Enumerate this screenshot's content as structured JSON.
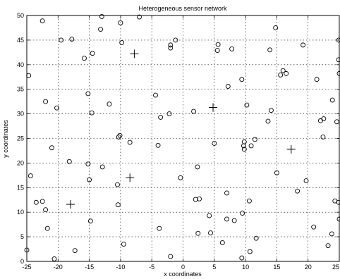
{
  "chart_data": {
    "type": "scatter",
    "title": "Heterogeneous sensor network",
    "xlabel": "x coordinates",
    "ylabel": "y coordinates",
    "xlim": [
      -25,
      25
    ],
    "ylim": [
      0,
      50
    ],
    "xticks": [
      -25,
      -20,
      -15,
      -10,
      -5,
      0,
      5,
      10,
      15,
      20,
      25
    ],
    "yticks": [
      0,
      5,
      10,
      15,
      20,
      25,
      30,
      35,
      40,
      45,
      50
    ],
    "xtick_labels": [
      "-25",
      "-20",
      "-15",
      "-10",
      "-5",
      "0",
      "5",
      "10",
      "15",
      "20",
      "25"
    ],
    "ytick_labels": [
      "0",
      "5",
      "10",
      "15",
      "20",
      "25",
      "30",
      "35",
      "40",
      "45",
      "50"
    ],
    "grid": true,
    "series": [
      {
        "marker": "circle",
        "points": [
          [
            -22.5,
            48.9
          ],
          [
            -19.5,
            45.0
          ],
          [
            -17.8,
            45.2
          ],
          [
            -13.0,
            49.8
          ],
          [
            -13.2,
            47.2
          ],
          [
            -10.0,
            48.5
          ],
          [
            -7.0,
            49.7
          ],
          [
            -9.8,
            44.5
          ],
          [
            -14.5,
            42.3
          ],
          [
            -15.8,
            41.3
          ],
          [
            -24.7,
            37.8
          ],
          [
            -22.0,
            32.5
          ],
          [
            -20.2,
            31.2
          ],
          [
            -15.2,
            34.1
          ],
          [
            -11.8,
            32.0
          ],
          [
            -14.6,
            30.2
          ],
          [
            -21.0,
            23.1
          ],
          [
            -18.2,
            20.3
          ],
          [
            -15.2,
            19.8
          ],
          [
            -12.9,
            19.2
          ],
          [
            -10.3,
            25.3
          ],
          [
            -10.1,
            25.6
          ],
          [
            -8.5,
            24.2
          ],
          [
            -24.4,
            17.4
          ],
          [
            -15.0,
            16.6
          ],
          [
            -10.5,
            15.6
          ],
          [
            -23.5,
            12.0
          ],
          [
            -22.5,
            12.2
          ],
          [
            -22.0,
            10.5
          ],
          [
            -21.7,
            6.7
          ],
          [
            -25.0,
            2.3
          ],
          [
            -20.6,
            0.5
          ],
          [
            -17.3,
            2.2
          ],
          [
            -14.8,
            8.2
          ],
          [
            -10.4,
            11.5
          ],
          [
            -9.5,
            3.5
          ],
          [
            -2.0,
            44.0
          ],
          [
            -2.0,
            43.4
          ],
          [
            -1.2,
            45.0
          ],
          [
            -4.4,
            33.8
          ],
          [
            -3.6,
            29.3
          ],
          [
            -2.2,
            30.0
          ],
          [
            -4.0,
            23.6
          ],
          [
            -0.4,
            17.0
          ],
          [
            -3.8,
            6.7
          ],
          [
            -2.0,
            1.0
          ],
          [
            5.6,
            44.1
          ],
          [
            5.5,
            42.9
          ],
          [
            7.8,
            43.2
          ],
          [
            7.2,
            35.6
          ],
          [
            9.4,
            37.0
          ],
          [
            1.7,
            30.5
          ],
          [
            10.2,
            31.8
          ],
          [
            5.0,
            24.0
          ],
          [
            9.8,
            24.3
          ],
          [
            9.7,
            23.5
          ],
          [
            9.8,
            22.8
          ],
          [
            10.9,
            23.5
          ],
          [
            11.5,
            24.8
          ],
          [
            13.6,
            28.5
          ],
          [
            14.1,
            30.7
          ],
          [
            14.8,
            47.5
          ],
          [
            13.9,
            43.0
          ],
          [
            15.6,
            37.9
          ],
          [
            16.0,
            38.8
          ],
          [
            16.5,
            38.2
          ],
          [
            19.2,
            44.0
          ],
          [
            21.4,
            37.0
          ],
          [
            23.9,
            32.8
          ],
          [
            22.0,
            28.6
          ],
          [
            22.5,
            29.0
          ],
          [
            24.6,
            28.4
          ],
          [
            22.4,
            25.3
          ],
          [
            24.9,
            45.0
          ],
          [
            24.9,
            41.0
          ],
          [
            25.0,
            38.2
          ],
          [
            15.0,
            18.0
          ],
          [
            19.7,
            16.4
          ],
          [
            18.3,
            14.3
          ],
          [
            2.3,
            19.2
          ],
          [
            2.0,
            12.6
          ],
          [
            2.6,
            12.7
          ],
          [
            7.0,
            13.9
          ],
          [
            10.6,
            12.3
          ],
          [
            4.2,
            9.3
          ],
          [
            7.0,
            8.6
          ],
          [
            8.2,
            8.3
          ],
          [
            9.5,
            9.8
          ],
          [
            11.7,
            4.7
          ],
          [
            2.4,
            5.7
          ],
          [
            4.4,
            5.8
          ],
          [
            6.3,
            3.8
          ],
          [
            10.7,
            2.0
          ],
          [
            9.4,
            0.7
          ],
          [
            20.9,
            7.0
          ],
          [
            23.2,
            3.2
          ],
          [
            23.8,
            5.6
          ],
          [
            24.3,
            12.3
          ],
          [
            24.9,
            12.0
          ],
          [
            25.0,
            8.6
          ]
        ]
      },
      {
        "marker": "plus",
        "points": [
          [
            -7.8,
            42.2
          ],
          [
            4.8,
            31.3
          ],
          [
            17.3,
            22.8
          ],
          [
            -8.5,
            17.0
          ],
          [
            -18.0,
            11.6
          ]
        ]
      }
    ]
  }
}
